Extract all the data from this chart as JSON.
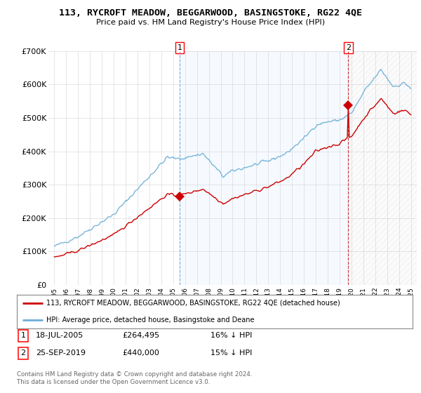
{
  "title": "113, RYCROFT MEADOW, BEGGARWOOD, BASINGSTOKE, RG22 4QE",
  "subtitle": "Price paid vs. HM Land Registry's House Price Index (HPI)",
  "ylim": [
    0,
    700000
  ],
  "yticks": [
    0,
    100000,
    200000,
    300000,
    400000,
    500000,
    600000,
    700000
  ],
  "ytick_labels": [
    "£0",
    "£100K",
    "£200K",
    "£300K",
    "£400K",
    "£500K",
    "£600K",
    "£700K"
  ],
  "hpi_color": "#6baed6",
  "price_color": "#cc0000",
  "date1_year": 2005.54,
  "date2_year": 2019.74,
  "marker1_price": 264495,
  "marker2_price": 440000,
  "legend_line1": "113, RYCROFT MEADOW, BEGGARWOOD, BASINGSTOKE, RG22 4QE (detached house)",
  "legend_line2": "HPI: Average price, detached house, Basingstoke and Deane",
  "copyright": "Contains HM Land Registry data © Crown copyright and database right 2024.\nThis data is licensed under the Open Government Licence v3.0.",
  "background_color": "#ffffff",
  "grid_color": "#cccccc",
  "shade_color": "#ddeeff",
  "hatch_color": "#cccccc"
}
